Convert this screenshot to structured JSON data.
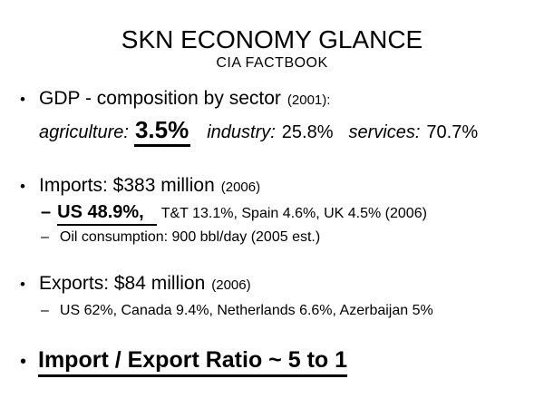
{
  "slide": {
    "title": "SKN ECONOMY GLANCE",
    "subtitle": "CIA FACTBOOK",
    "glyphs": {
      "bullet": "•",
      "dash": "–"
    },
    "gdp": {
      "heading": "GDP - composition by sector",
      "year_note": "(2001):",
      "agriculture_label": "agriculture:",
      "agriculture_value": "3.5%",
      "industry_label": "industry:",
      "industry_value": "25.8%",
      "services_label": "services:",
      "services_value": "70.7%"
    },
    "imports": {
      "heading": "Imports: $383 million",
      "year_note": "(2006)",
      "top_partner": "US 48.9%,",
      "other_partners": "T&T 13.1%, Spain 4.6%, UK 4.5% (2006)",
      "oil_consumption": "Oil consumption: 900 bbl/day (2005 est.)"
    },
    "exports": {
      "heading": "Exports: $84 million",
      "year_note": "(2006)",
      "partners": "US 62%, Canada 9.4%, Netherlands 6.6%, Azerbaijan 5%"
    },
    "ratio_line": "Import / Export Ratio ~ 5 to 1"
  },
  "colors": {
    "background": "#ffffff",
    "text": "#000000"
  }
}
